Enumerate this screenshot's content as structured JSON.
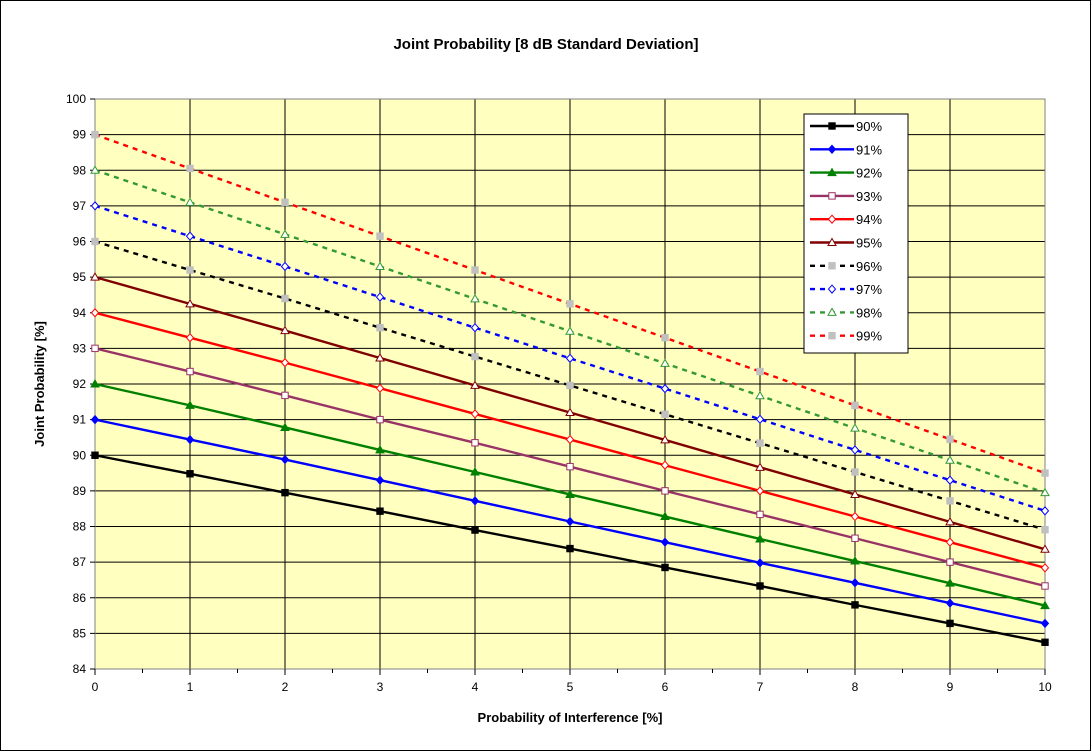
{
  "chart_data": {
    "type": "line",
    "title": "Joint Probability [8 dB Standard Deviation]",
    "xlabel": "Probability of Interference [%]",
    "ylabel": "Joint Probability [%]",
    "xlim": [
      0,
      10
    ],
    "ylim": [
      84,
      100
    ],
    "x": [
      0,
      1,
      2,
      3,
      4,
      5,
      6,
      7,
      8,
      9,
      10
    ],
    "x_ticks": [
      "0",
      "1",
      "2",
      "3",
      "4",
      "5",
      "6",
      "7",
      "8",
      "9",
      "10"
    ],
    "y_ticks": [
      "84",
      "85",
      "86",
      "87",
      "88",
      "89",
      "90",
      "91",
      "92",
      "93",
      "94",
      "95",
      "96",
      "97",
      "98",
      "99",
      "100"
    ],
    "grid": true,
    "legend_position": "top-right",
    "plot_background": "#FFFFC0",
    "series": [
      {
        "name": "90%",
        "color": "#000000",
        "dash": "solid",
        "marker": "square-filled",
        "values": [
          90.0,
          89.48,
          88.95,
          88.43,
          87.9,
          87.38,
          86.85,
          86.33,
          85.8,
          85.28,
          84.75
        ]
      },
      {
        "name": "91%",
        "color": "#0000FF",
        "dash": "solid",
        "marker": "diamond-filled",
        "values": [
          91.0,
          90.44,
          89.88,
          89.3,
          88.72,
          88.14,
          87.56,
          86.98,
          86.42,
          85.85,
          85.28
        ]
      },
      {
        "name": "92%",
        "color": "#008000",
        "dash": "solid",
        "marker": "triangle-filled",
        "values": [
          92.0,
          91.4,
          90.78,
          90.15,
          89.53,
          88.9,
          88.28,
          87.65,
          87.03,
          86.41,
          85.78
        ]
      },
      {
        "name": "93%",
        "color": "#993366",
        "dash": "solid",
        "marker": "square-open",
        "values": [
          93.0,
          92.35,
          91.68,
          91.0,
          90.35,
          89.68,
          89.0,
          88.34,
          87.67,
          87.0,
          86.33
        ]
      },
      {
        "name": "94%",
        "color": "#FF0000",
        "dash": "solid",
        "marker": "diamond-open",
        "values": [
          94.0,
          93.3,
          92.6,
          91.88,
          91.16,
          90.44,
          89.72,
          89.0,
          88.28,
          87.56,
          86.84
        ]
      },
      {
        "name": "95%",
        "color": "#800000",
        "dash": "solid",
        "marker": "triangle-open",
        "values": [
          95.0,
          94.25,
          93.5,
          92.73,
          91.96,
          91.2,
          90.43,
          89.66,
          88.9,
          88.13,
          87.36
        ]
      },
      {
        "name": "96%",
        "color": "#000000",
        "dash": "dashed",
        "marker": "square-grey",
        "values": [
          96.0,
          95.2,
          94.4,
          93.58,
          92.77,
          91.96,
          91.15,
          90.34,
          89.53,
          88.72,
          87.91
        ]
      },
      {
        "name": "97%",
        "color": "#0000FF",
        "dash": "dashed",
        "marker": "diamond-open",
        "values": [
          97.0,
          96.15,
          95.3,
          94.44,
          93.58,
          92.72,
          91.87,
          91.01,
          90.15,
          89.3,
          88.44
        ]
      },
      {
        "name": "98%",
        "color": "#339933",
        "dash": "dashed",
        "marker": "triangle-open",
        "values": [
          98.0,
          97.1,
          96.2,
          95.3,
          94.39,
          93.48,
          92.58,
          91.67,
          90.76,
          89.86,
          88.95
        ]
      },
      {
        "name": "99%",
        "color": "#FF0000",
        "dash": "dashed",
        "marker": "square-grey",
        "values": [
          99.0,
          98.05,
          97.1,
          96.15,
          95.2,
          94.25,
          93.3,
          92.35,
          91.4,
          90.45,
          89.5
        ]
      }
    ]
  }
}
